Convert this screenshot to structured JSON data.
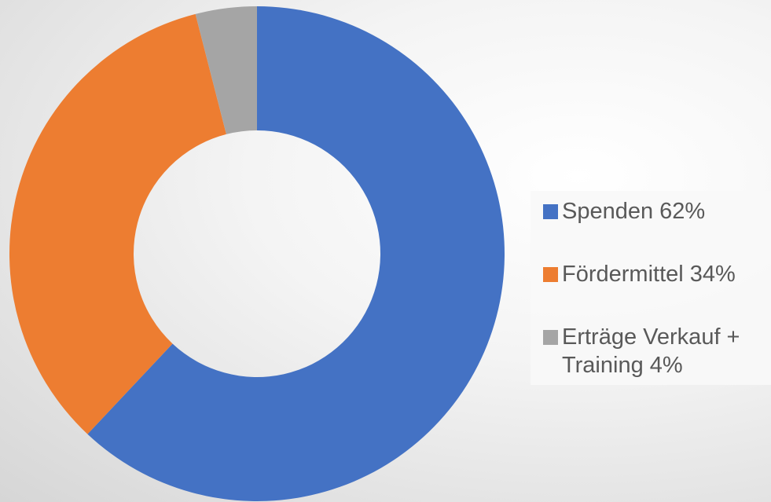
{
  "chart_data": {
    "type": "donut",
    "categories": [
      "Spenden",
      "Fördermittel",
      "Erträge Verkauf + Training"
    ],
    "values": [
      62,
      34,
      4
    ],
    "value_labels": [
      "62%",
      "34%",
      "4%"
    ],
    "colors": [
      "#4472c4",
      "#ed7d31",
      "#a5a5a5"
    ]
  }
}
